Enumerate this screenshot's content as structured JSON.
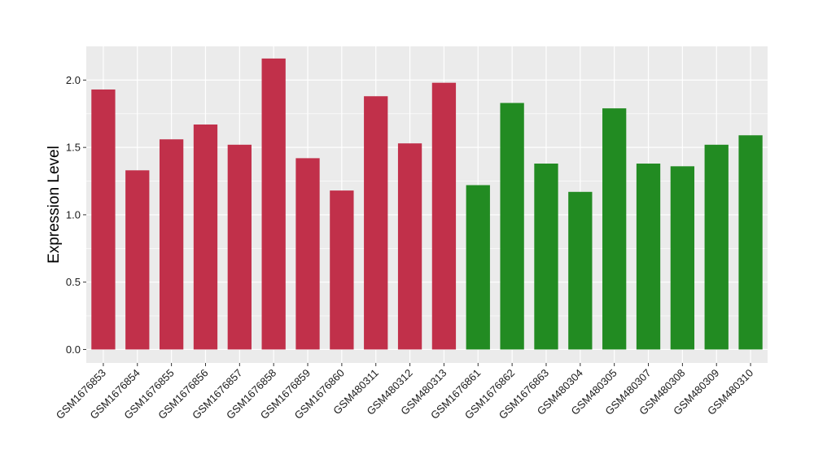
{
  "chart_data": {
    "type": "bar",
    "title": "",
    "xlabel": "",
    "ylabel": "Expression Level",
    "ylim": [
      -0.1,
      2.25
    ],
    "yticks": [
      0.0,
      0.5,
      1.0,
      1.5,
      2.0
    ],
    "ytick_labels": [
      "0.0",
      "0.5",
      "1.0",
      "1.5",
      "2.0"
    ],
    "grid": true,
    "legend": "none",
    "categories": [
      "GSM1676853",
      "GSM1676854",
      "GSM1676855",
      "GSM1676856",
      "GSM1676857",
      "GSM1676858",
      "GSM1676859",
      "GSM1676860",
      "GSM480311",
      "GSM480312",
      "GSM480313",
      "GSM1676861",
      "GSM1676862",
      "GSM1676863",
      "GSM480304",
      "GSM480305",
      "GSM480307",
      "GSM480308",
      "GSM480309",
      "GSM480310"
    ],
    "values": [
      1.93,
      1.33,
      1.56,
      1.67,
      1.52,
      2.16,
      1.42,
      1.18,
      1.88,
      1.53,
      1.98,
      1.22,
      1.83,
      1.38,
      1.17,
      1.79,
      1.38,
      1.36,
      1.52,
      1.59
    ],
    "bar_colors": [
      "#c1304a",
      "#c1304a",
      "#c1304a",
      "#c1304a",
      "#c1304a",
      "#c1304a",
      "#c1304a",
      "#c1304a",
      "#c1304a",
      "#c1304a",
      "#c1304a",
      "#228b22",
      "#228b22",
      "#228b22",
      "#228b22",
      "#228b22",
      "#228b22",
      "#228b22",
      "#228b22",
      "#228b22"
    ],
    "panel_background": "#ebebeb",
    "grid_color": "#ffffff"
  }
}
